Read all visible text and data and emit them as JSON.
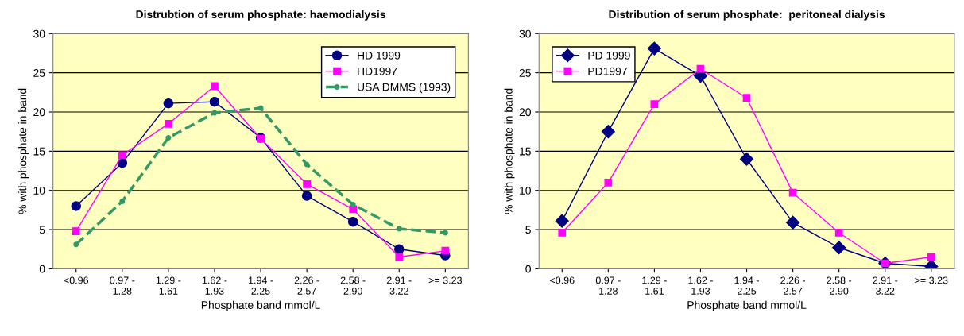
{
  "chart_data": [
    {
      "type": "line",
      "title": "Distrubtion of serum phosphate: haemodialysis",
      "xlabel": "Phosphate band mmol/L",
      "ylabel": "% with phosphate in band",
      "categories": [
        "<0.96",
        "0.97 -\n1.28",
        "1.29 -\n1.61",
        "1.62 -\n1.93",
        "1.94 -\n2.25",
        "2.26 -\n2.57",
        "2.58 -\n2.90",
        "2.91 -\n3.22",
        ">= 3.23"
      ],
      "ylim": [
        0,
        30
      ],
      "yticks": [
        0,
        5,
        10,
        15,
        20,
        25,
        30
      ],
      "grid": "y",
      "legend": "top right",
      "series": [
        {
          "name": "HD 1999",
          "color": "#000080",
          "marker": "circle",
          "line_style": "solid",
          "values": [
            8.0,
            13.5,
            21.1,
            21.3,
            16.7,
            9.3,
            6.0,
            2.5,
            1.7
          ]
        },
        {
          "name": "HD1997",
          "color": "#ff00ff",
          "marker": "square",
          "line_style": "solid",
          "values": [
            4.8,
            14.5,
            18.5,
            23.3,
            16.6,
            10.8,
            7.6,
            1.5,
            2.3
          ]
        },
        {
          "name": "USA DMMS (1993)",
          "color": "#339966",
          "marker": "circle",
          "line_style": "dashed",
          "values": [
            3.1,
            8.6,
            16.7,
            19.9,
            20.5,
            13.3,
            8.2,
            5.1,
            4.6
          ]
        }
      ]
    },
    {
      "type": "line",
      "title": "Distribution of serum phosphate:  peritoneal dialysis",
      "xlabel": "Phosphate band mmol/L",
      "ylabel": "% with phosphate in band",
      "categories": [
        "<0.96",
        "0.97 -\n1.28",
        "1.29 -\n1.61",
        "1.62 -\n1.93",
        "1.94 -\n2.25",
        "2.26 -\n2.57",
        "2.58 -\n2.90",
        "2.91 -\n3.22",
        ">= 3.23"
      ],
      "ylim": [
        0,
        30
      ],
      "yticks": [
        0,
        5,
        10,
        15,
        20,
        25,
        30
      ],
      "grid": "y",
      "legend": "top left",
      "series": [
        {
          "name": "PD 1999",
          "color": "#000080",
          "marker": "diamond",
          "line_style": "solid",
          "values": [
            6.1,
            17.5,
            28.1,
            24.6,
            14.0,
            5.9,
            2.7,
            0.7,
            0.3
          ]
        },
        {
          "name": "PD1997",
          "color": "#ff00ff",
          "marker": "square",
          "line_style": "solid",
          "values": [
            4.6,
            11.0,
            21.0,
            25.5,
            21.8,
            9.7,
            4.6,
            0.7,
            1.5
          ]
        }
      ]
    }
  ]
}
